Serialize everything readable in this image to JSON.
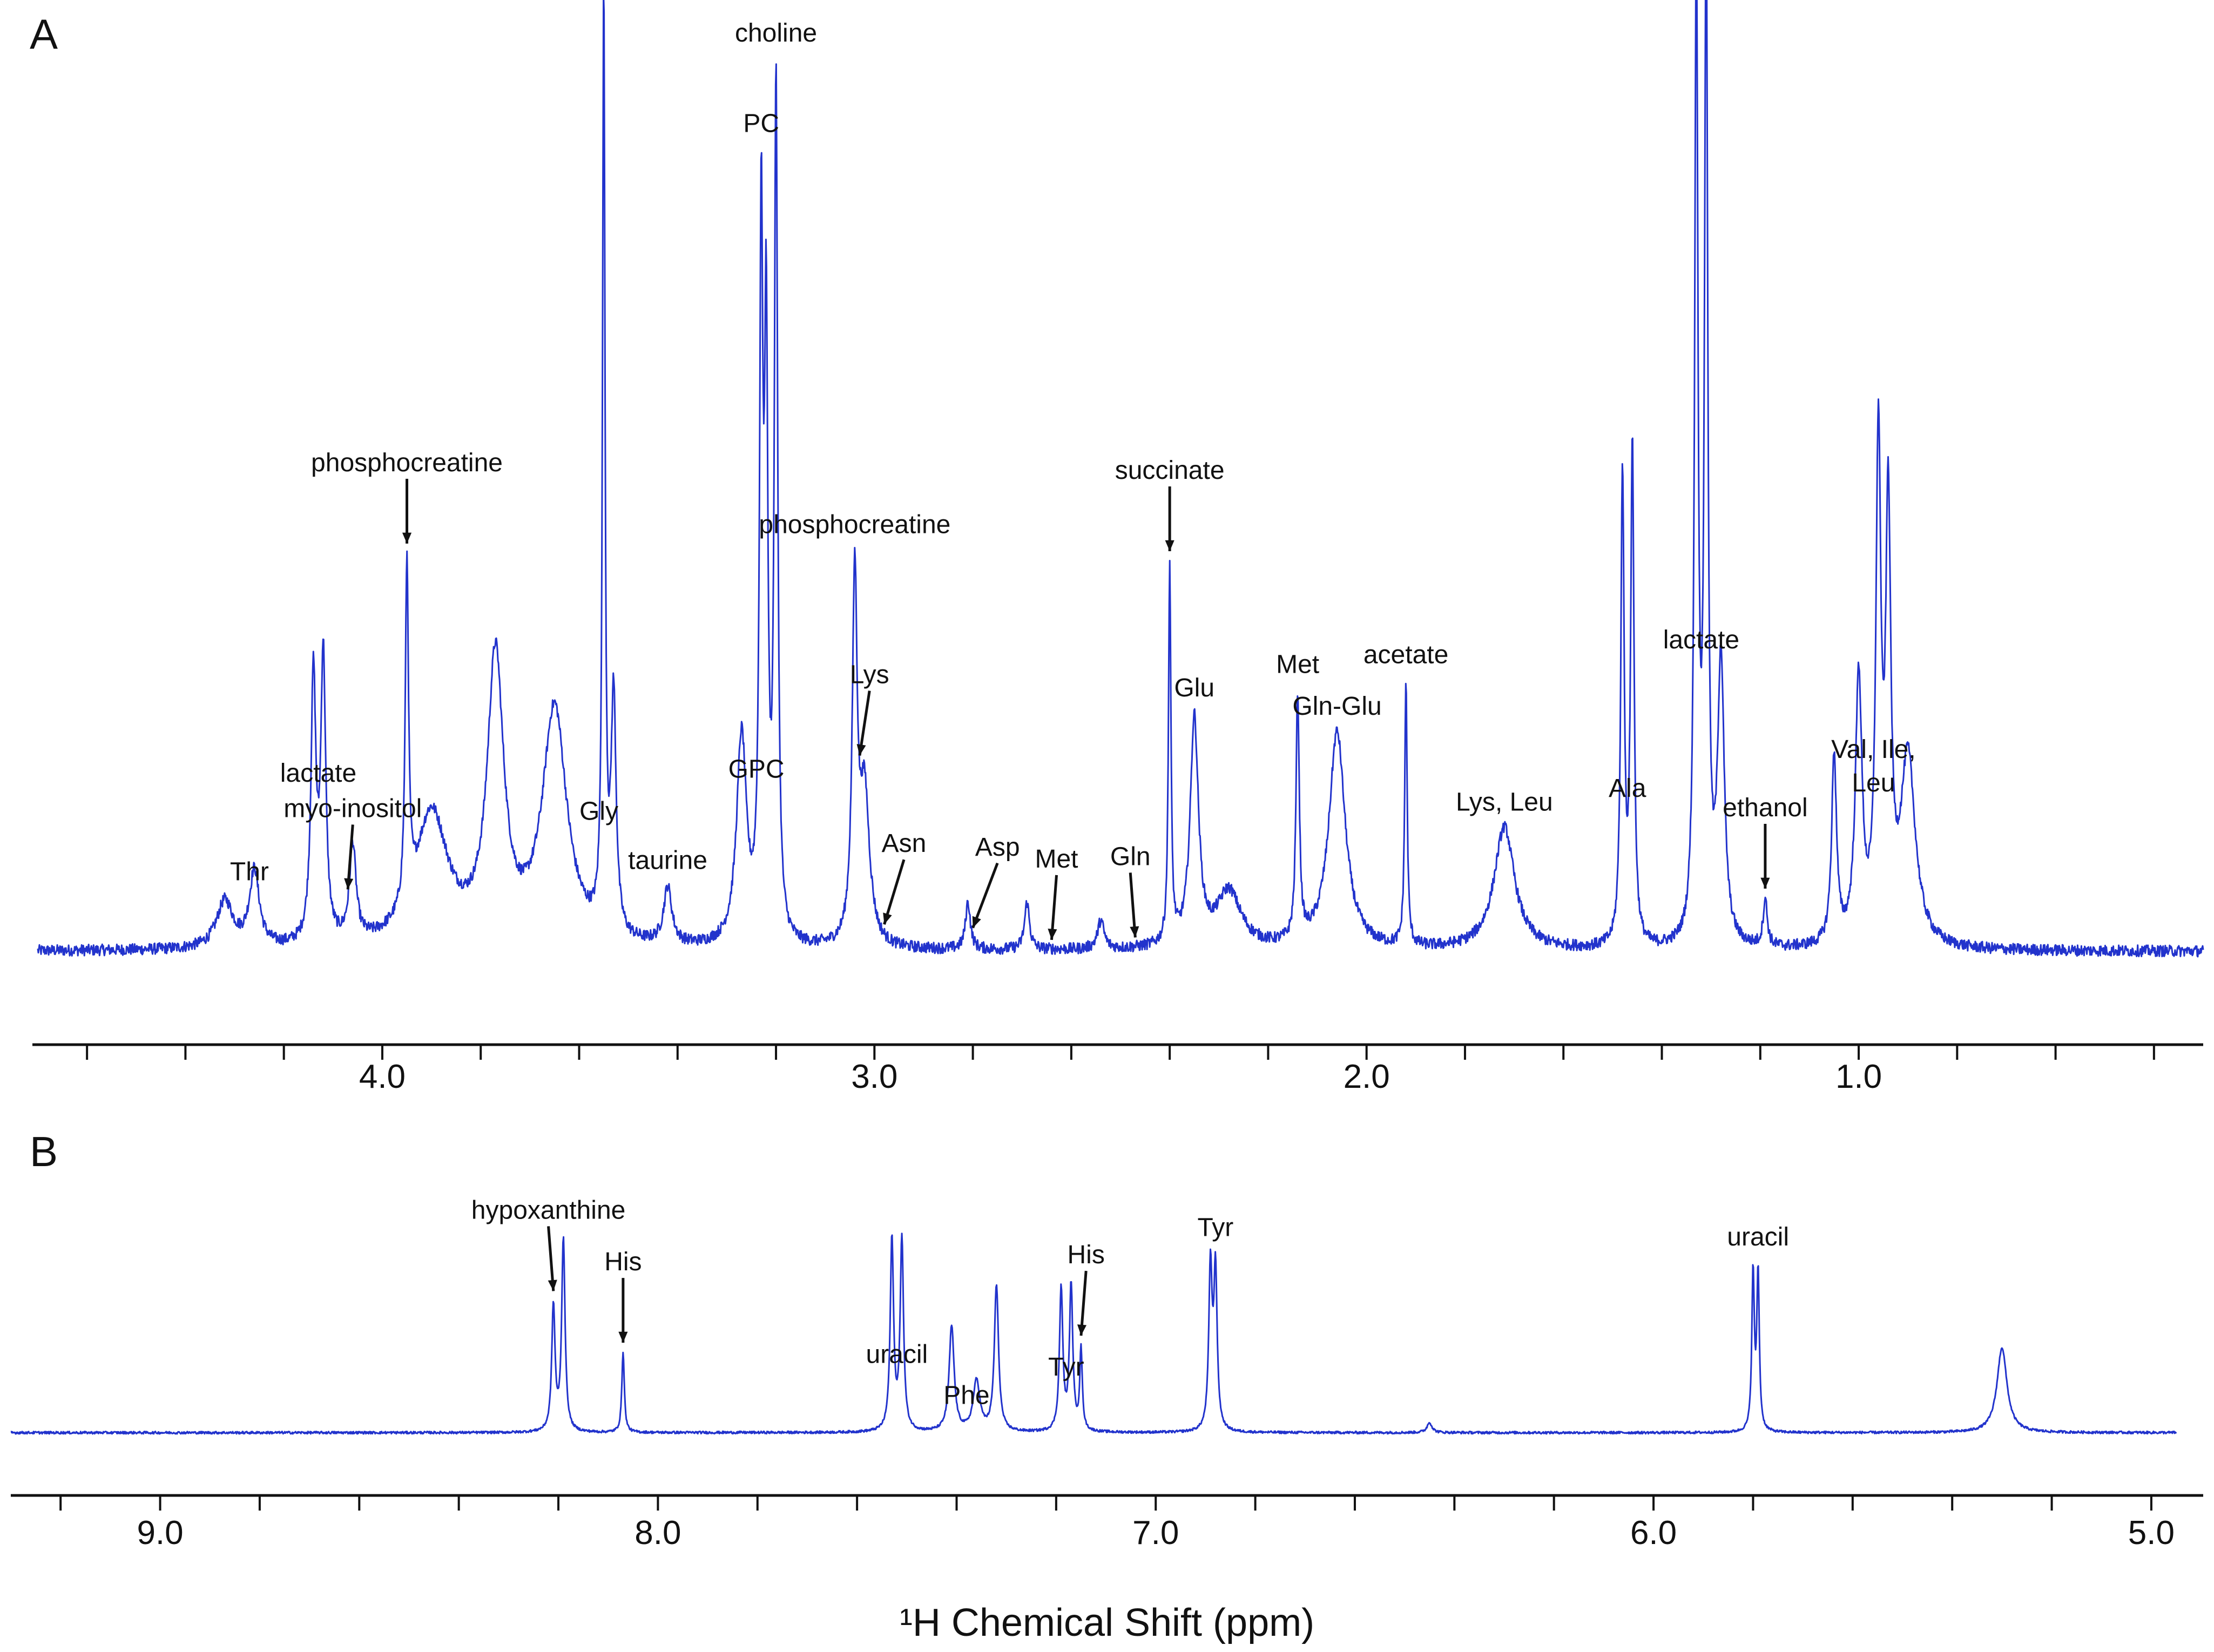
{
  "chart_data": [
    {
      "panel": "A",
      "type": "line",
      "xlabel": "",
      "ylabel": "",
      "xlim": [
        4.7,
        0.3
      ],
      "xticks": [
        4.0,
        3.0,
        2.0,
        1.0
      ],
      "tick_labels": [
        "4.0",
        "3.0",
        "2.0",
        "1.0"
      ],
      "baseline": 0.03,
      "peaks": [
        {
          "x": 4.26,
          "h": 0.08,
          "w": 0.012
        },
        {
          "x": 4.32,
          "h": 0.05,
          "w": 0.02
        },
        {
          "x": 4.12,
          "h": 0.3,
          "w": 0.006
        },
        {
          "x": 4.14,
          "h": 0.28,
          "w": 0.006
        },
        {
          "x": 4.06,
          "h": 0.1,
          "w": 0.008
        },
        {
          "x": 3.95,
          "h": 0.36,
          "w": 0.004
        },
        {
          "x": 3.9,
          "h": 0.14,
          "w": 0.04
        },
        {
          "x": 3.77,
          "h": 0.3,
          "w": 0.02
        },
        {
          "x": 3.65,
          "h": 0.25,
          "w": 0.03
        },
        {
          "x": 3.55,
          "h": 0.99,
          "w": 0.003
        },
        {
          "x": 3.53,
          "h": 0.25,
          "w": 0.006
        },
        {
          "x": 3.42,
          "h": 0.06,
          "w": 0.01
        },
        {
          "x": 3.27,
          "h": 0.22,
          "w": 0.012
        },
        {
          "x": 3.23,
          "h": 0.73,
          "w": 0.004
        },
        {
          "x": 3.22,
          "h": 0.6,
          "w": 0.004
        },
        {
          "x": 3.2,
          "h": 0.9,
          "w": 0.004
        },
        {
          "x": 3.04,
          "h": 0.38,
          "w": 0.006
        },
        {
          "x": 3.02,
          "h": 0.16,
          "w": 0.012
        },
        {
          "x": 2.81,
          "h": 0.05,
          "w": 0.006
        },
        {
          "x": 2.69,
          "h": 0.05,
          "w": 0.006
        },
        {
          "x": 2.54,
          "h": 0.03,
          "w": 0.008
        },
        {
          "x": 2.4,
          "h": 0.4,
          "w": 0.003
        },
        {
          "x": 2.35,
          "h": 0.24,
          "w": 0.01
        },
        {
          "x": 2.28,
          "h": 0.06,
          "w": 0.03
        },
        {
          "x": 2.14,
          "h": 0.26,
          "w": 0.004
        },
        {
          "x": 2.06,
          "h": 0.23,
          "w": 0.02
        },
        {
          "x": 1.92,
          "h": 0.28,
          "w": 0.003
        },
        {
          "x": 1.72,
          "h": 0.13,
          "w": 0.025
        },
        {
          "x": 1.48,
          "h": 0.5,
          "w": 0.004
        },
        {
          "x": 1.46,
          "h": 0.53,
          "w": 0.004
        },
        {
          "x": 1.33,
          "h": 1.05,
          "w": 0.004
        },
        {
          "x": 1.31,
          "h": 1.05,
          "w": 0.004
        },
        {
          "x": 1.28,
          "h": 0.3,
          "w": 0.008
        },
        {
          "x": 1.19,
          "h": 0.05,
          "w": 0.005
        },
        {
          "x": 1.05,
          "h": 0.2,
          "w": 0.006
        },
        {
          "x": 1.0,
          "h": 0.28,
          "w": 0.008
        },
        {
          "x": 0.96,
          "h": 0.52,
          "w": 0.006
        },
        {
          "x": 0.94,
          "h": 0.44,
          "w": 0.006
        },
        {
          "x": 0.9,
          "h": 0.2,
          "w": 0.018
        }
      ],
      "annotations": [
        {
          "text": "Thr",
          "x": 4.27
        },
        {
          "text": "lactate",
          "x": 4.13
        },
        {
          "text": "myo-inositol",
          "x": 4.06,
          "arrow_to": 4.07
        },
        {
          "text": "phosphocreatine",
          "x": 3.95,
          "arrow_to": 3.95
        },
        {
          "text": "Gly",
          "x": 3.56
        },
        {
          "text": "taurine",
          "x": 3.42
        },
        {
          "text": "GPC",
          "x": 3.24
        },
        {
          "text": "PC",
          "x": 3.23
        },
        {
          "text": "choline",
          "x": 3.2
        },
        {
          "text": "phosphocreatine",
          "x": 3.04
        },
        {
          "text": "Lys",
          "x": 3.01,
          "arrow_to": 3.03
        },
        {
          "text": "Asn",
          "x": 2.94,
          "arrow_to": 2.98
        },
        {
          "text": "Asp",
          "x": 2.75,
          "arrow_to": 2.8
        },
        {
          "text": "Met",
          "x": 2.63,
          "arrow_to": 2.64
        },
        {
          "text": "Gln",
          "x": 2.48,
          "arrow_to": 2.47
        },
        {
          "text": "succinate",
          "x": 2.4,
          "arrow_to": 2.4
        },
        {
          "text": "Glu",
          "x": 2.35
        },
        {
          "text": "Met",
          "x": 2.14
        },
        {
          "text": "Gln-Glu",
          "x": 2.06
        },
        {
          "text": "acetate",
          "x": 1.92
        },
        {
          "text": "Lys, Leu",
          "x": 1.72
        },
        {
          "text": "Ala",
          "x": 1.47
        },
        {
          "text": "lactate",
          "x": 1.32
        },
        {
          "text": "ethanol",
          "x": 1.19,
          "arrow_to": 1.19
        },
        {
          "text": "Val, Ile,",
          "x": 0.97
        },
        {
          "text": "Leu",
          "x": 0.97
        }
      ]
    },
    {
      "panel": "B",
      "type": "line",
      "xlabel": "¹H Chemical Shift (ppm)",
      "ylabel": "",
      "xlim": [
        9.3,
        4.95
      ],
      "xticks": [
        9.0,
        8.0,
        7.0,
        6.0,
        5.0
      ],
      "tick_labels": [
        "9.0",
        "8.0",
        "7.0",
        "6.0",
        "5.0"
      ],
      "baseline": 0.03,
      "peaks": [
        {
          "x": 8.21,
          "h": 0.62,
          "w": 0.004
        },
        {
          "x": 8.19,
          "h": 0.95,
          "w": 0.004
        },
        {
          "x": 8.07,
          "h": 0.4,
          "w": 0.003
        },
        {
          "x": 7.53,
          "h": 0.95,
          "w": 0.004
        },
        {
          "x": 7.51,
          "h": 0.95,
          "w": 0.004
        },
        {
          "x": 7.41,
          "h": 0.52,
          "w": 0.006
        },
        {
          "x": 7.36,
          "h": 0.25,
          "w": 0.008
        },
        {
          "x": 7.32,
          "h": 0.72,
          "w": 0.005
        },
        {
          "x": 7.19,
          "h": 0.7,
          "w": 0.004
        },
        {
          "x": 7.17,
          "h": 0.72,
          "w": 0.004
        },
        {
          "x": 7.15,
          "h": 0.4,
          "w": 0.003
        },
        {
          "x": 6.89,
          "h": 0.8,
          "w": 0.004
        },
        {
          "x": 6.88,
          "h": 0.78,
          "w": 0.004
        },
        {
          "x": 6.45,
          "h": 0.05,
          "w": 0.006
        },
        {
          "x": 5.8,
          "h": 0.78,
          "w": 0.003
        },
        {
          "x": 5.79,
          "h": 0.78,
          "w": 0.003
        },
        {
          "x": 5.3,
          "h": 0.42,
          "w": 0.012
        }
      ],
      "annotations": [
        {
          "text": "hypoxanthine",
          "x": 8.22,
          "arrow_to": 8.21
        },
        {
          "text": "His",
          "x": 8.07,
          "arrow_to": 8.07
        },
        {
          "text": "uracil",
          "x": 7.52
        },
        {
          "text": "Phe",
          "x": 7.38
        },
        {
          "text": "Tyr",
          "x": 7.18
        },
        {
          "text": "His",
          "x": 7.14,
          "arrow_to": 7.15
        },
        {
          "text": "Tyr",
          "x": 6.88
        },
        {
          "text": "uracil",
          "x": 5.79
        }
      ]
    }
  ]
}
